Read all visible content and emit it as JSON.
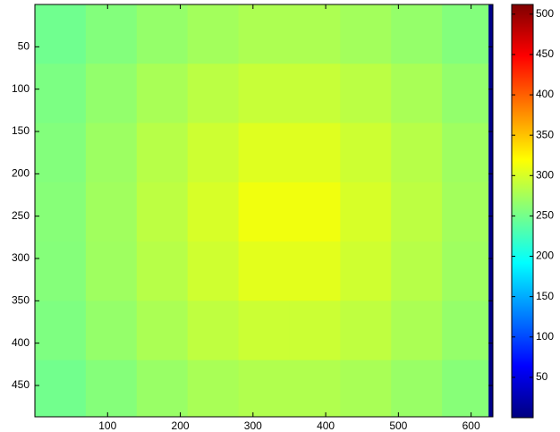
{
  "chart_data": {
    "type": "heatmap",
    "colormap": "jet",
    "xbins": [
      0,
      70,
      140,
      210,
      280,
      350,
      420,
      490,
      560,
      624,
      630
    ],
    "ybins": [
      0,
      70,
      140,
      210,
      280,
      350,
      420,
      487
    ],
    "values": [
      [
        248,
        258,
        267,
        274,
        279,
        279,
        274,
        267,
        258,
        5
      ],
      [
        254,
        266,
        277,
        286,
        292,
        292,
        286,
        277,
        266,
        5
      ],
      [
        258,
        271,
        284,
        295,
        304,
        304,
        295,
        284,
        272,
        5
      ],
      [
        260,
        273,
        287,
        300,
        313,
        313,
        300,
        287,
        274,
        5
      ],
      [
        259,
        272,
        284,
        296,
        306,
        306,
        296,
        284,
        272,
        5
      ],
      [
        255,
        267,
        278,
        288,
        294,
        294,
        288,
        278,
        267,
        5
      ],
      [
        249,
        259,
        269,
        277,
        281,
        281,
        277,
        269,
        260,
        5
      ]
    ],
    "xlim": [
      0,
      630
    ],
    "xticks": [
      100,
      200,
      300,
      400,
      500,
      600
    ],
    "ylim": [
      0,
      487
    ],
    "yticks": [
      50,
      100,
      150,
      200,
      250,
      300,
      350,
      400,
      450
    ],
    "clim": [
      0,
      512
    ],
    "cticks": [
      50,
      100,
      150,
      200,
      250,
      300,
      350,
      400,
      450,
      500
    ]
  }
}
